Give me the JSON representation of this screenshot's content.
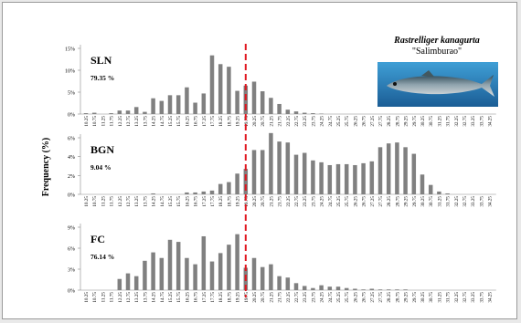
{
  "species": {
    "scientific_name": "Rastrelliger kanagurta",
    "common_name": "\"Salimburao\""
  },
  "chart_data": {
    "type": "bar",
    "ylabel": "Frequency (%)",
    "reference_line": {
      "x": "19.75",
      "color": "#e0141d",
      "style": "dashed"
    },
    "bar_color": "#808080",
    "categories": [
      "10.25",
      "10.75",
      "11.25",
      "11.75",
      "12.25",
      "12.75",
      "13.25",
      "13.75",
      "14.25",
      "14.75",
      "15.25",
      "15.75",
      "16.25",
      "16.75",
      "17.25",
      "17.75",
      "18.25",
      "18.75",
      "19.25",
      "19.75",
      "20.25",
      "20.75",
      "21.25",
      "21.75",
      "22.25",
      "22.75",
      "23.25",
      "23.75",
      "24.25",
      "24.75",
      "25.25",
      "25.75",
      "26.25",
      "26.75",
      "27.25",
      "27.75",
      "28.25",
      "28.75",
      "29.25",
      "29.75",
      "30.25",
      "30.75",
      "31.25",
      "31.75",
      "32.25",
      "32.75",
      "33.25",
      "33.75",
      "34.25"
    ],
    "panels": [
      {
        "label": "SLN",
        "percent": "79.35 %",
        "yticks": [
          "0%",
          "5%",
          "10%",
          "15%"
        ],
        "ymax": 15,
        "values": [
          0.2,
          0.3,
          0,
          0.2,
          0.8,
          0.8,
          1.6,
          0.5,
          3.6,
          3.0,
          4.3,
          4.3,
          6.1,
          2.6,
          4.7,
          13.4,
          11.4,
          10.8,
          5.3,
          6.5,
          7.4,
          5.2,
          3.7,
          2.3,
          1.0,
          0.6,
          0.3,
          0.2,
          0.1,
          0,
          0,
          0,
          0,
          0,
          0,
          0,
          0,
          0,
          0,
          0,
          0,
          0,
          0,
          0,
          0,
          0,
          0,
          0,
          0
        ]
      },
      {
        "label": "BGN",
        "percent": "9.04 %",
        "yticks": [
          "0%",
          "2%",
          "4%",
          "6%"
        ],
        "ymax": 6,
        "values": [
          0,
          0,
          0,
          0,
          0,
          0,
          0,
          0,
          0.1,
          0,
          0,
          0,
          0.2,
          0.2,
          0.3,
          0.4,
          1.1,
          1.3,
          2.2,
          2.7,
          4.7,
          4.7,
          6.5,
          5.6,
          5.5,
          4.2,
          4.4,
          3.6,
          3.4,
          3.1,
          3.2,
          3.2,
          3.1,
          3.3,
          3.5,
          5.0,
          5.4,
          5.5,
          5.0,
          4.3,
          2.1,
          1.0,
          0.3,
          0.1,
          0,
          0,
          0,
          0,
          0
        ]
      },
      {
        "label": "FC",
        "percent": "76.14 %",
        "yticks": [
          "0%",
          "3%",
          "6%",
          "9%"
        ],
        "ymax": 9,
        "values": [
          0,
          0,
          0,
          0,
          1.6,
          2.4,
          2.0,
          4.2,
          5.4,
          4.6,
          7.2,
          6.9,
          4.6,
          3.7,
          7.7,
          4.1,
          5.3,
          6.5,
          8.0,
          3.2,
          4.6,
          3.3,
          3.7,
          2.0,
          1.8,
          1.0,
          0.6,
          0.3,
          0.7,
          0.5,
          0.5,
          0.3,
          0.2,
          0.1,
          0.2,
          0.1,
          0.1,
          0.1,
          0.1,
          0,
          0,
          0,
          0,
          0,
          0,
          0,
          0,
          0,
          0
        ]
      }
    ]
  }
}
